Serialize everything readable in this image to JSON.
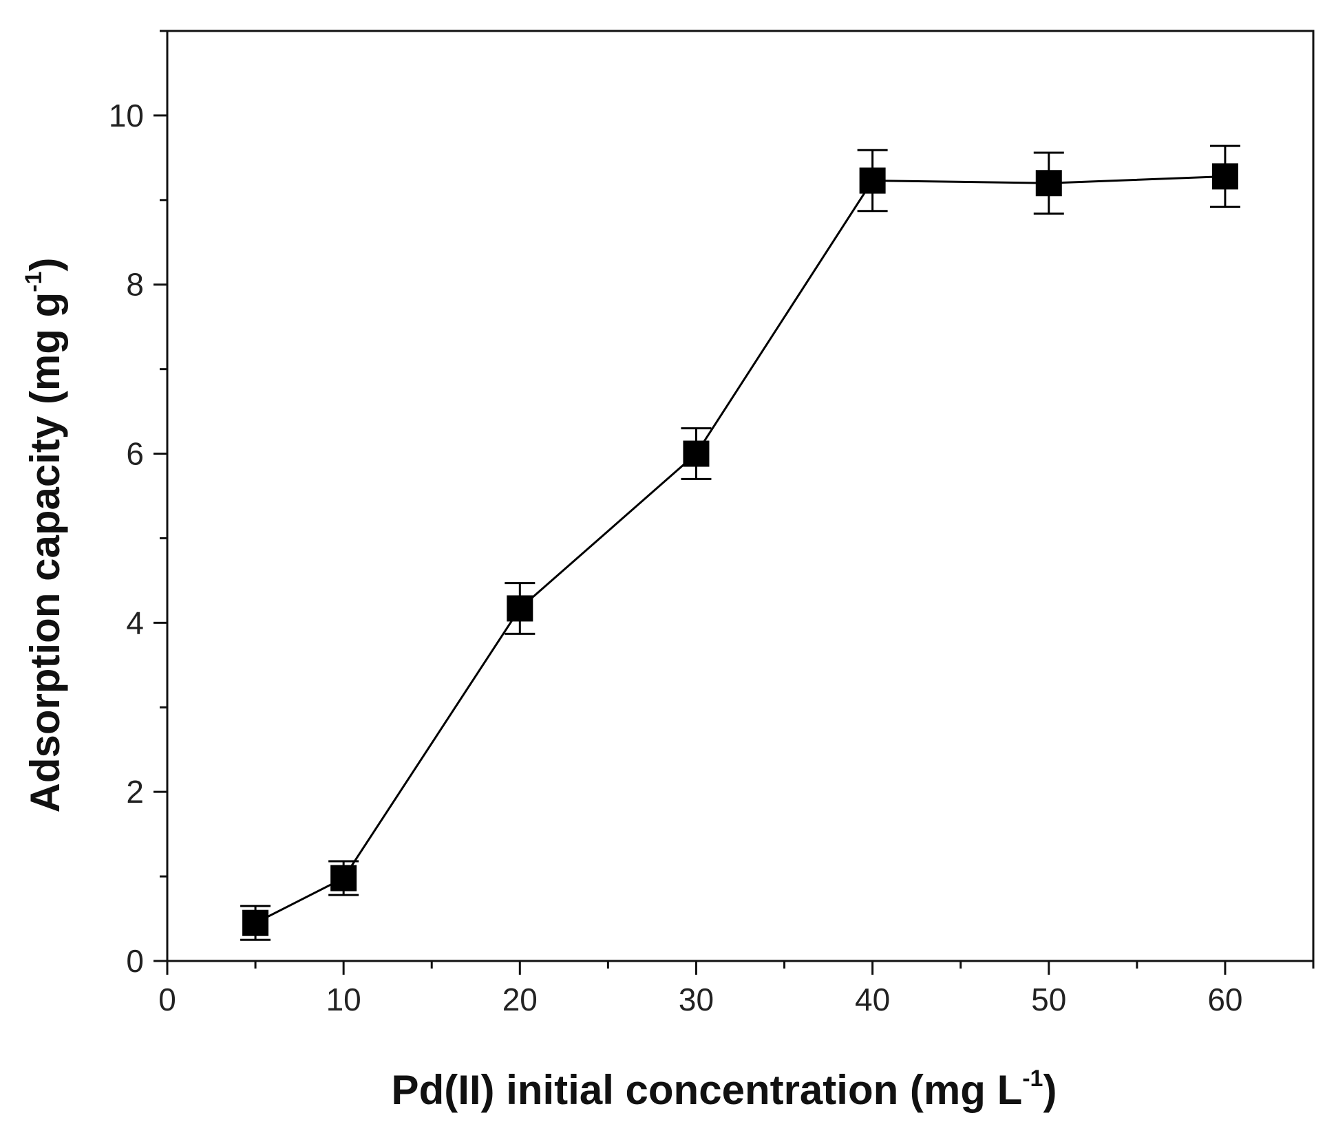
{
  "chart_data": {
    "type": "line",
    "title": "",
    "xlabel": {
      "text": "Pd(II) initial concentration (mg L",
      "sup": "-1",
      "suffix": ")"
    },
    "ylabel": {
      "text": "Adsorption capacity (mg g",
      "sup": "-1",
      "suffix": ")"
    },
    "xlim": [
      0,
      65
    ],
    "ylim": [
      0,
      11
    ],
    "x_ticks": [
      0,
      10,
      20,
      30,
      40,
      50,
      60
    ],
    "x_minor_ticks": [
      5,
      15,
      25,
      35,
      45,
      55,
      65
    ],
    "y_ticks": [
      0,
      2,
      4,
      6,
      8,
      10
    ],
    "y_minor_ticks": [
      1,
      3,
      5,
      7,
      9,
      11
    ],
    "series": [
      {
        "name": "Adsorption capacity",
        "marker": "square",
        "color": "#000000",
        "x": [
          5,
          10,
          20,
          30,
          40,
          50,
          60
        ],
        "y": [
          0.45,
          0.98,
          4.17,
          6.0,
          9.23,
          9.2,
          9.28
        ],
        "error": [
          0.2,
          0.2,
          0.3,
          0.3,
          0.36,
          0.36,
          0.36
        ]
      }
    ],
    "grid": false,
    "legend": "none"
  }
}
